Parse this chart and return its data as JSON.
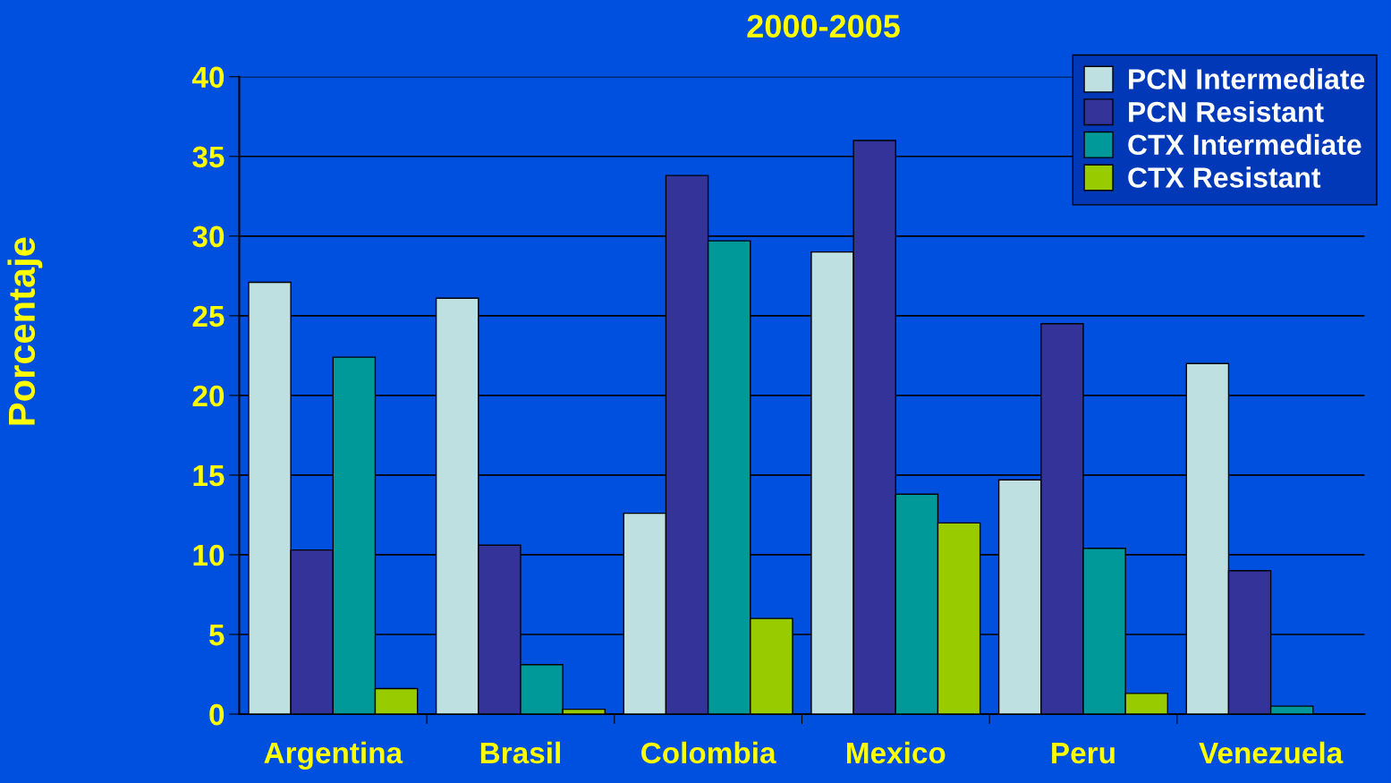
{
  "chart_data": {
    "type": "bar",
    "title": "2000-2005",
    "ylabel": "Porcentaje",
    "categories": [
      "Argentina",
      "Brasil",
      "Colombia",
      "Mexico",
      "Peru",
      "Venezuela"
    ],
    "series": [
      {
        "name": "PCN Intermediate",
        "color": "#bfe0e0",
        "values": [
          27.1,
          26.1,
          12.6,
          29.0,
          14.7,
          22.0
        ]
      },
      {
        "name": "PCN Resistant",
        "color": "#333399",
        "values": [
          10.3,
          10.6,
          33.8,
          36.0,
          24.5,
          9.0
        ]
      },
      {
        "name": "CTX Intermediate",
        "color": "#009999",
        "values": [
          22.4,
          3.1,
          29.7,
          13.8,
          10.4,
          0.5
        ]
      },
      {
        "name": "CTX Resistant",
        "color": "#99cc00",
        "values": [
          1.6,
          0.3,
          6.0,
          12.0,
          1.3,
          null
        ]
      }
    ],
    "ylim": [
      0,
      40
    ],
    "yticks": [
      0,
      5,
      10,
      15,
      20,
      25,
      30,
      35,
      40
    ],
    "grid": "y",
    "legend": "top right"
  }
}
